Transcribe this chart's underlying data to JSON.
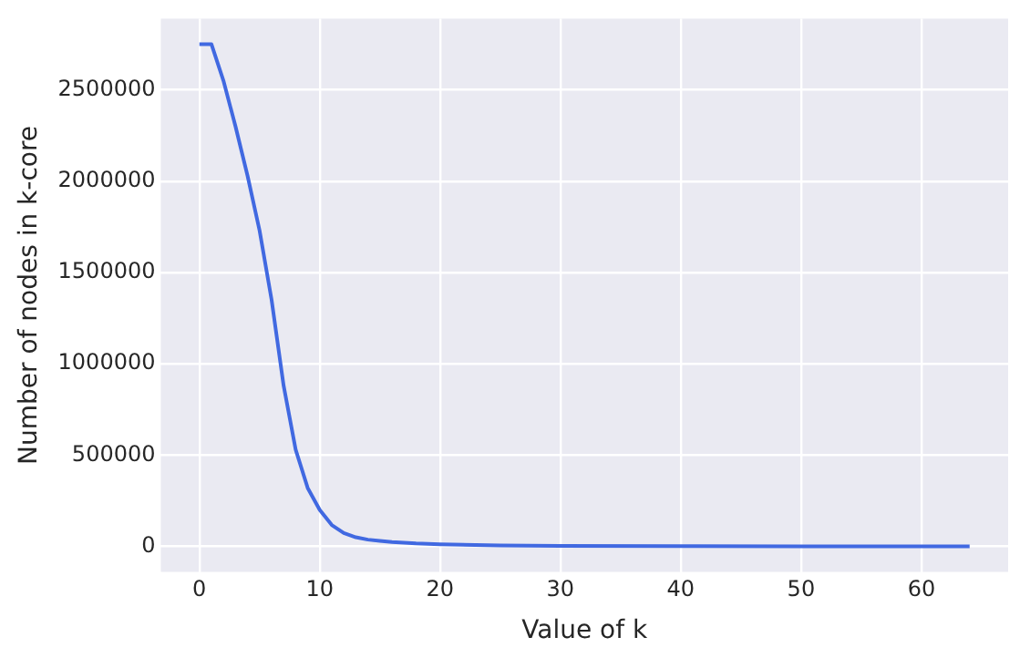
{
  "chart_data": {
    "type": "line",
    "xlabel": "Value of k",
    "ylabel": "Number of nodes in k-core",
    "x": [
      0,
      1,
      2,
      3,
      4,
      5,
      6,
      7,
      8,
      9,
      10,
      11,
      12,
      13,
      14,
      15,
      16,
      18,
      20,
      25,
      30,
      40,
      50,
      64
    ],
    "series": [
      {
        "color": "#4169e1",
        "values": [
          2750000,
          2750000,
          2550000,
          2300000,
          2030000,
          1730000,
          1350000,
          880000,
          530000,
          320000,
          200000,
          117000,
          73000,
          50000,
          37000,
          30000,
          24000,
          16000,
          11000,
          5000,
          3000,
          1500,
          800,
          300
        ]
      }
    ],
    "xlim": [
      -3.2,
      67.2
    ],
    "xticks": [
      0,
      10,
      20,
      30,
      40,
      50,
      60
    ],
    "ylim": [
      -140000,
      2890000
    ],
    "yticks": [
      0,
      500000,
      1000000,
      1500000,
      2000000,
      2500000
    ],
    "grid": true,
    "legend": false,
    "marker": "none",
    "line_style": "solid"
  }
}
